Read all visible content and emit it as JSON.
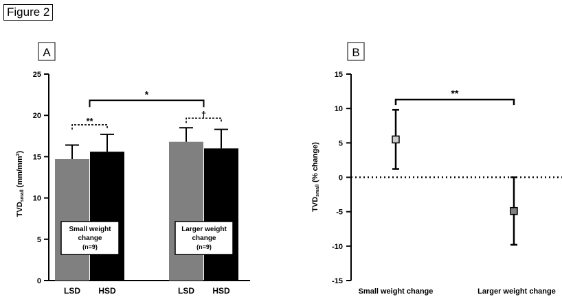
{
  "figure_label": "Figure 2",
  "chart_data": [
    {
      "type": "bar",
      "panel_label": "A",
      "ylabel_main": "TVD",
      "ylabel_sub": "small",
      "ylabel_unit": " (mm/mm",
      "ylabel_sup": "2",
      "ylabel_close": ")",
      "ylim": [
        0,
        25
      ],
      "yticks": [
        0,
        5,
        10,
        15,
        20,
        25
      ],
      "groups": [
        {
          "box": [
            "Small weight",
            "change",
            "(n=9)"
          ],
          "bars": [
            {
              "category": "LSD",
              "value": 14.7,
              "error": 1.7,
              "color": "#808080"
            },
            {
              "category": "HSD",
              "value": 15.6,
              "error": 2.1,
              "color": "#000000"
            }
          ],
          "significance": "**"
        },
        {
          "box": [
            "Larger weight",
            "change",
            "(n=9)"
          ],
          "bars": [
            {
              "category": "LSD",
              "value": 16.8,
              "error": 1.7,
              "color": "#808080"
            },
            {
              "category": "HSD",
              "value": 16.0,
              "error": 2.3,
              "color": "#000000"
            }
          ],
          "significance": "†"
        }
      ],
      "between_groups_significance": "*"
    },
    {
      "type": "scatter",
      "panel_label": "B",
      "ylabel_main": "TVD",
      "ylabel_sub": "small",
      "ylabel_rest": " (% change)",
      "ylim": [
        -15,
        15
      ],
      "yticks": [
        -15,
        -10,
        -5,
        0,
        5,
        10,
        15
      ],
      "categories": [
        "Small weight change",
        "Larger weight change"
      ],
      "points": [
        {
          "category": "Small weight change",
          "value": 5.5,
          "upper": 9.8,
          "lower": 1.2,
          "color": "#cccccc"
        },
        {
          "category": "Larger weight change",
          "value": -4.9,
          "upper": 0.0,
          "lower": -9.8,
          "color": "#808080"
        }
      ],
      "reference_line": 0,
      "significance": "**"
    }
  ]
}
